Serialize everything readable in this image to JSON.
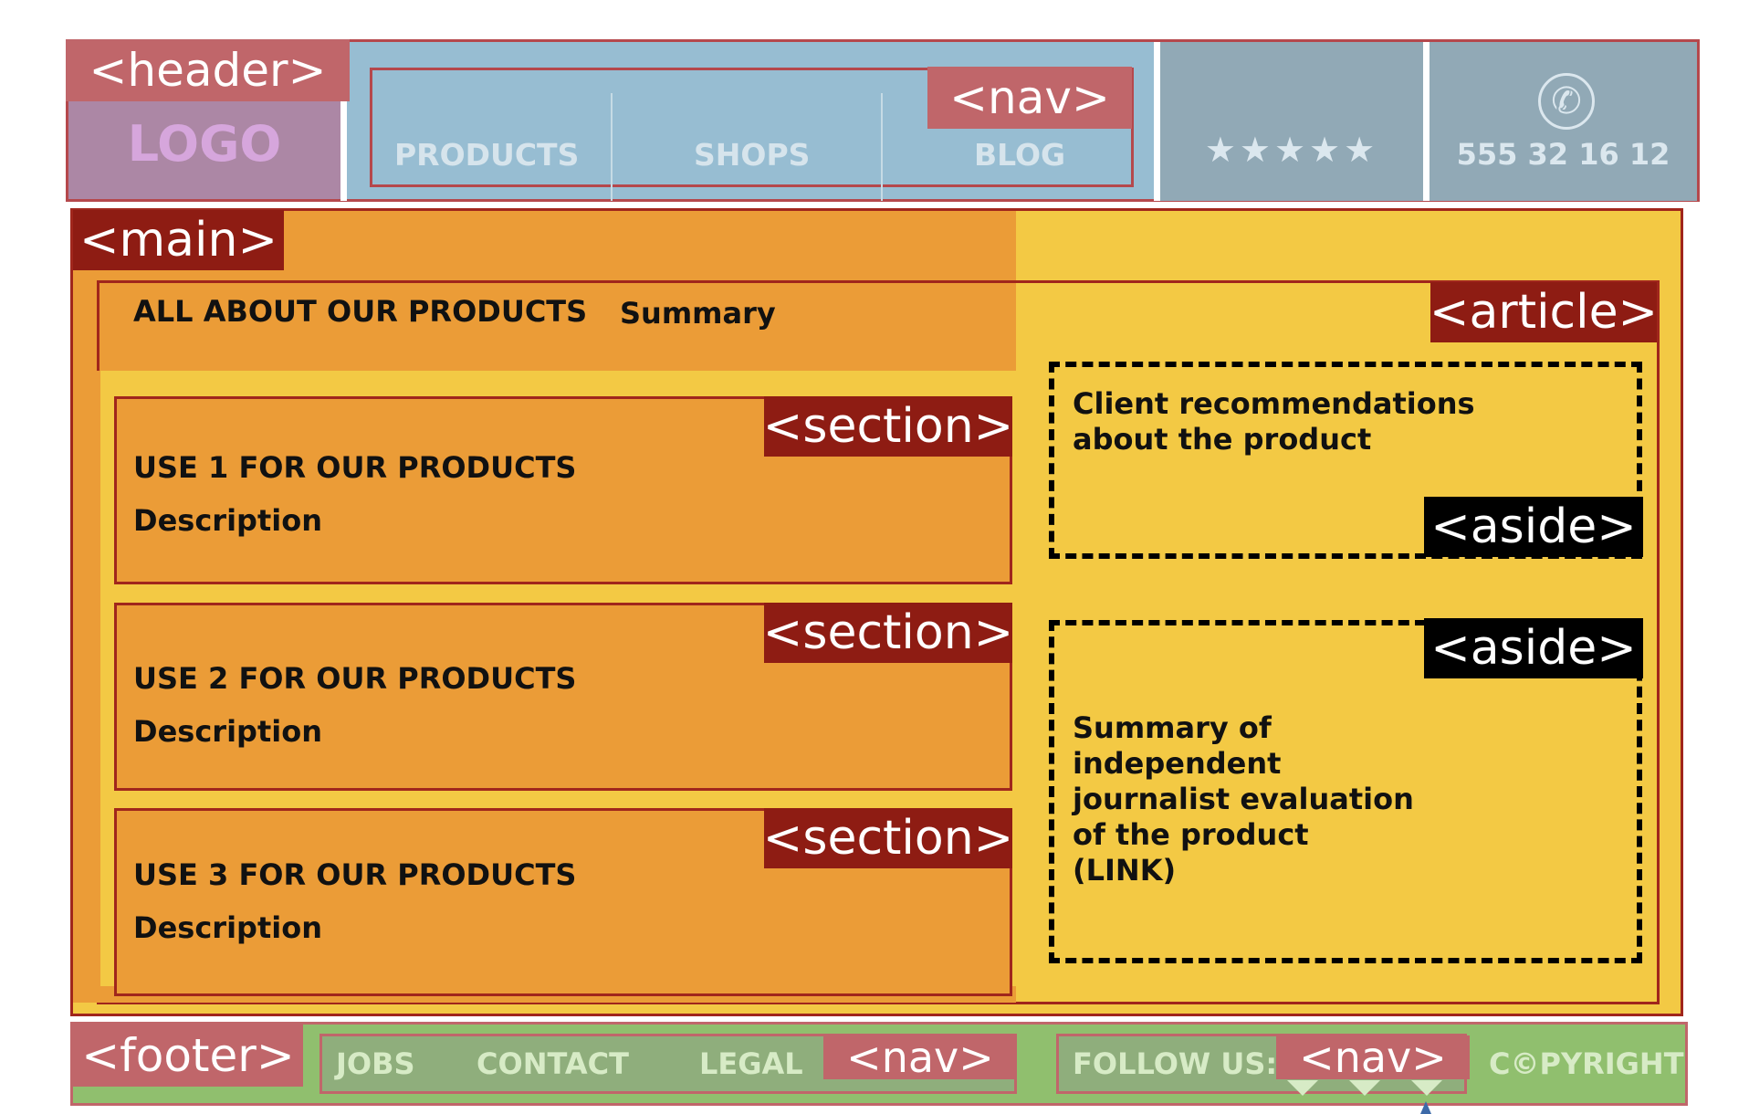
{
  "header": {
    "tag": "<header>",
    "logo": "LOGO",
    "nav_tag": "<nav>",
    "nav_items": [
      "PRODUCTS",
      "SHOPS",
      "BLOG"
    ],
    "rating": "★★★★★",
    "phone_icon": "✆",
    "phone": "555 32 16 12"
  },
  "main": {
    "tag": "<main>",
    "article_tag": "<article>",
    "article_title": "ALL ABOUT OUR PRODUCTS",
    "article_summary": "Summary",
    "sections": [
      {
        "tag": "<section>",
        "title": "USE 1 FOR OUR PRODUCTS",
        "description": "Description"
      },
      {
        "tag": "<section>",
        "title": "USE 2 FOR OUR PRODUCTS",
        "description": "Description"
      },
      {
        "tag": "<section>",
        "title": "USE 3 FOR OUR PRODUCTS",
        "description": "Description"
      }
    ],
    "asides": [
      {
        "tag": "<aside>",
        "lines": [
          "Client recommendations",
          "about the product"
        ]
      },
      {
        "tag": "<aside>",
        "lines": [
          "Summary of",
          "independent",
          "journalist evaluation",
          "of the product",
          "(LINK)"
        ]
      }
    ]
  },
  "footer": {
    "tag": "<footer>",
    "nav_tag": "<nav>",
    "nav_items": [
      "JOBS",
      "CONTACT",
      "LEGAL"
    ],
    "follow_nav_tag": "<nav>",
    "follow_label": "FOLLOW US:",
    "copyright": "C©PYRIGHT"
  },
  "colors": {
    "header_bg": "#97bdd2",
    "logo_bg": "#ac87a5",
    "main_bg": "#eb9c37",
    "article_bg": "#f3c944",
    "footer_bg": "#90bf6e",
    "tag_light": "#c0666a",
    "tag_dark": "#8e1c13"
  }
}
